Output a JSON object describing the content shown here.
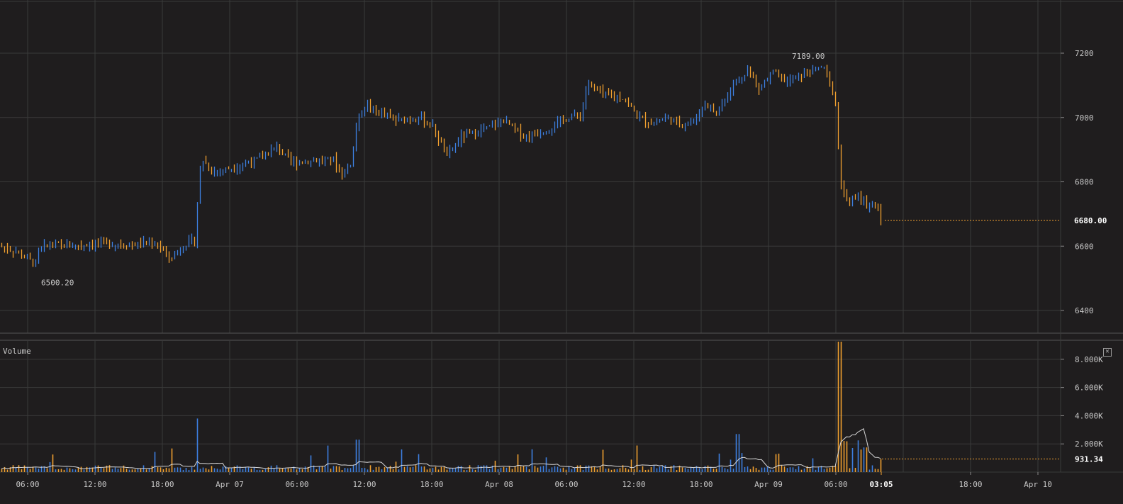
{
  "colors": {
    "background": "#1f1d1e",
    "grid": "#3a3a3a",
    "up": "#3d7fe0",
    "down": "#f0a030",
    "volume_ma": "#d8d8d8",
    "text": "#c8c8c8"
  },
  "volume_pane": {
    "label": "Volume",
    "close_icon": "close-icon",
    "close_glyph": "✕"
  },
  "chart_data": [
    {
      "type": "ohlc",
      "title": "",
      "ylim": [
        6330,
        7310
      ],
      "y_ticks": [
        6400,
        6600,
        6800,
        7000,
        7200
      ],
      "last_price": 6680.0,
      "last_price_label": "6680.00",
      "high_annotation": {
        "value": 7189.0,
        "label": "7189.00"
      },
      "low_annotation": {
        "value": 6500.2,
        "label": "6500.20"
      },
      "grid": true
    },
    {
      "type": "bar",
      "title": "Volume",
      "ylim": [
        0,
        9300
      ],
      "y_ticks": [
        2000,
        4000,
        6000,
        8000
      ],
      "y_tick_labels": [
        "2.000K",
        "4.000K",
        "6.000K",
        "8.000K"
      ],
      "last_value": 931.34,
      "last_value_label": "931.34",
      "series": [
        {
          "type": "line"
        }
      ],
      "grid": true
    }
  ],
  "x_axis": {
    "ticks": [
      "06:00",
      "12:00",
      "18:00",
      "Apr 07",
      "06:00",
      "12:00",
      "18:00",
      "Apr 08",
      "06:00",
      "12:00",
      "18:00",
      "Apr 09",
      "06:00",
      "03:05",
      "18:00",
      "Apr 10"
    ],
    "highlight_index": 13
  }
}
